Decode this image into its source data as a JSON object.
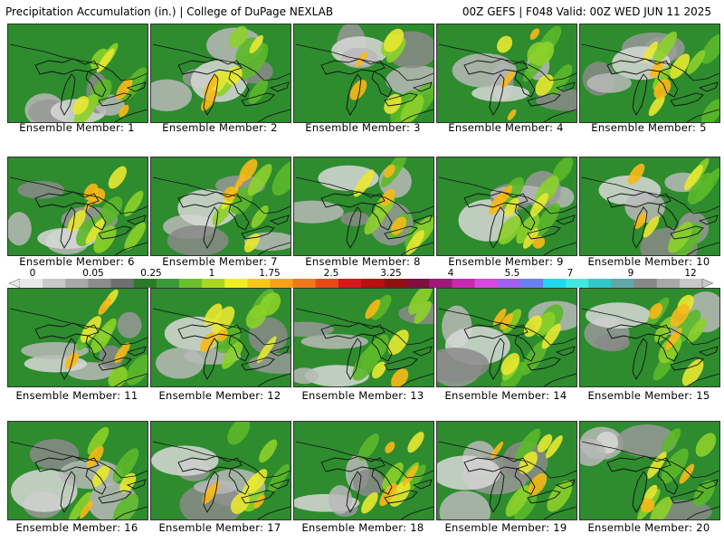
{
  "header": {
    "left": "Precipitation Accumulation (in.) | College of DuPage NEXLAB",
    "right": "00Z GEFS | F048 Valid: 00Z WED JUN 11 2025"
  },
  "colorbar": {
    "labels": [
      "0",
      "0.05",
      "0.25",
      "1",
      "1.75",
      "2.5",
      "3.25",
      "4",
      "5.5",
      "7",
      "9",
      "12"
    ],
    "colors": [
      "#e8e8e8",
      "#c8c8c8",
      "#a8a8a8",
      "#8c8c8c",
      "#707070",
      "#2a7a2a",
      "#3a9a3a",
      "#6cc02a",
      "#a8d81e",
      "#f0f020",
      "#f8c818",
      "#f8a018",
      "#f07818",
      "#e84818",
      "#d81818",
      "#b81010",
      "#901010",
      "#801040",
      "#a01878",
      "#c828b0",
      "#d848e0",
      "#a060f0",
      "#6880f0",
      "#20d8f0",
      "#40e8e0",
      "#30c8c8",
      "#60a8a8",
      "#888888",
      "#a8a8a8",
      "#c8c8c8"
    ]
  },
  "members": [
    {
      "label": "Ensemble Member: 1"
    },
    {
      "label": "Ensemble Member: 2"
    },
    {
      "label": "Ensemble Member: 3"
    },
    {
      "label": "Ensemble Member: 4"
    },
    {
      "label": "Ensemble Member: 5"
    },
    {
      "label": "Ensemble Member: 6"
    },
    {
      "label": "Ensemble Member: 7"
    },
    {
      "label": "Ensemble Member: 8"
    },
    {
      "label": "Ensemble Member: 9"
    },
    {
      "label": "Ensemble Member: 10"
    },
    {
      "label": "Ensemble Member: 11"
    },
    {
      "label": "Ensemble Member: 12"
    },
    {
      "label": "Ensemble Member: 13"
    },
    {
      "label": "Ensemble Member: 14"
    },
    {
      "label": "Ensemble Member: 15"
    },
    {
      "label": "Ensemble Member: 16"
    },
    {
      "label": "Ensemble Member: 17"
    },
    {
      "label": "Ensemble Member: 18"
    },
    {
      "label": "Ensemble Member: 19"
    },
    {
      "label": "Ensemble Member: 20"
    }
  ]
}
